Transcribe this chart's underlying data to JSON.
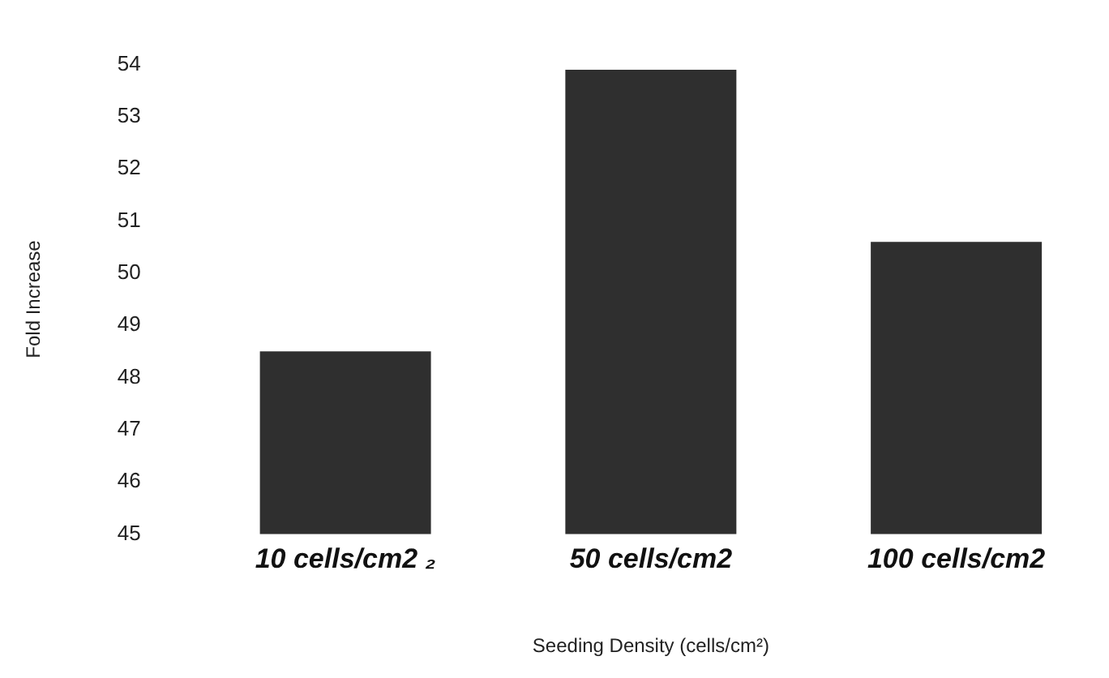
{
  "chart_data": {
    "type": "bar",
    "xlabel": "Seeding Density (cells/cm²)",
    "ylabel": "Fold Increase",
    "categories": [
      "10 cells/cm2 ₂",
      "50 cells/cm2",
      "100 cells/cm2"
    ],
    "values": [
      48.5,
      53.9,
      50.6
    ],
    "color": "#2f2f2f",
    "ylim": [
      45,
      54
    ],
    "yticks": [
      45,
      46,
      47,
      48,
      49,
      50,
      51,
      52,
      53,
      54
    ],
    "grid": false
  }
}
